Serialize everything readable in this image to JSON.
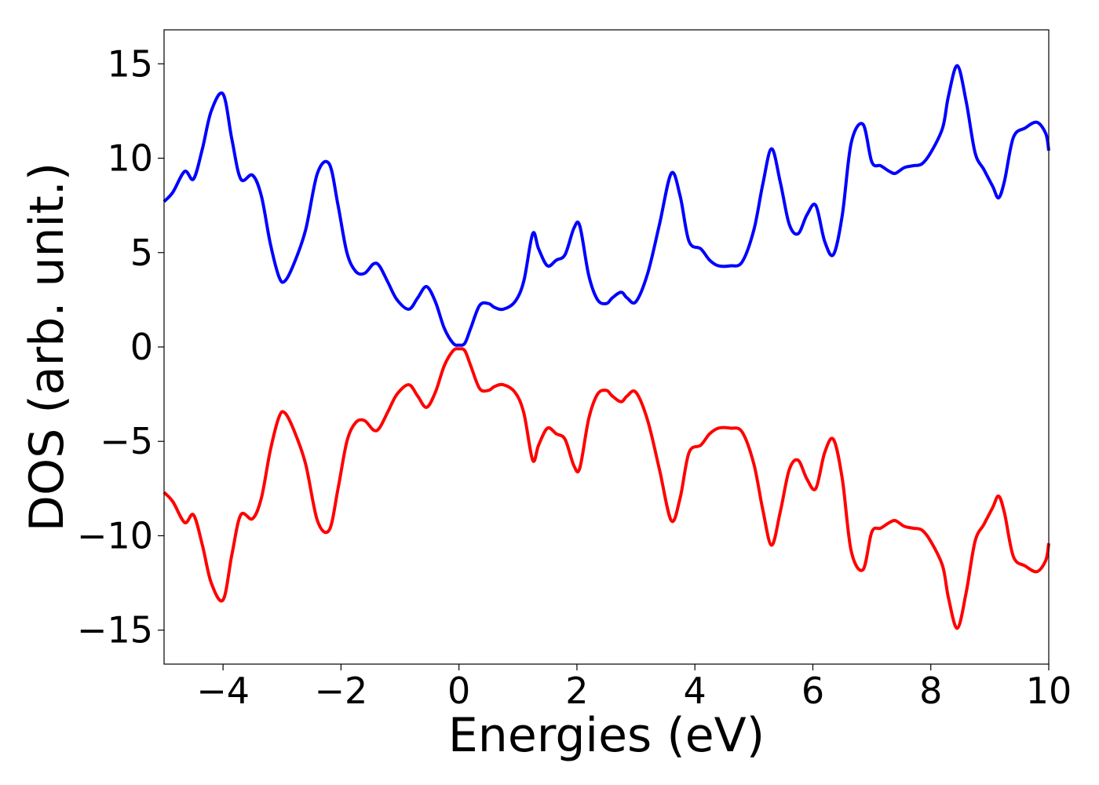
{
  "chart_data": {
    "type": "line",
    "title": "",
    "xlabel": "Energies (eV)",
    "ylabel": "DOS (arb. unit.)",
    "xlim": [
      -5,
      10
    ],
    "ylim": [
      -16.8,
      16.8
    ],
    "xticks": [
      -4,
      -2,
      0,
      2,
      4,
      6,
      8,
      10
    ],
    "xtick_labels": [
      "−4",
      "−2",
      "0",
      "2",
      "4",
      "6",
      "8",
      "10"
    ],
    "yticks": [
      15,
      10,
      5,
      0,
      -5,
      -10,
      -15
    ],
    "ytick_labels": [
      "15",
      "10",
      "5",
      "0",
      "−5",
      "−10",
      "−15"
    ],
    "grid": false,
    "legend": "none",
    "series": [
      {
        "color": "#0000ff",
        "x": [
          -5.0,
          -4.85,
          -4.65,
          -4.5,
          -4.35,
          -4.2,
          -4.0,
          -3.85,
          -3.7,
          -3.5,
          -3.35,
          -3.2,
          -3.05,
          -2.95,
          -2.8,
          -2.6,
          -2.4,
          -2.2,
          -2.05,
          -1.9,
          -1.75,
          -1.6,
          -1.45,
          -1.35,
          -1.2,
          -1.05,
          -0.85,
          -0.7,
          -0.55,
          -0.4,
          -0.25,
          -0.1,
          0.0,
          0.1,
          0.2,
          0.35,
          0.5,
          0.6,
          0.75,
          0.95,
          1.1,
          1.25,
          1.35,
          1.5,
          1.65,
          1.8,
          1.95,
          2.05,
          2.2,
          2.35,
          2.5,
          2.6,
          2.75,
          2.85,
          3.0,
          3.2,
          3.4,
          3.6,
          3.75,
          3.9,
          4.1,
          4.25,
          4.4,
          4.6,
          4.8,
          5.0,
          5.15,
          5.3,
          5.45,
          5.6,
          5.75,
          5.9,
          6.05,
          6.2,
          6.35,
          6.5,
          6.65,
          6.85,
          7.0,
          7.15,
          7.3,
          7.4,
          7.55,
          7.7,
          7.85,
          8.0,
          8.2,
          8.3,
          8.45,
          8.6,
          8.75,
          8.9,
          9.05,
          9.15,
          9.25,
          9.4,
          9.6,
          9.8,
          9.95,
          10.0
        ],
        "values": [
          7.7,
          8.2,
          9.3,
          8.9,
          10.5,
          12.5,
          13.4,
          11.0,
          8.9,
          9.1,
          8.0,
          5.5,
          3.7,
          3.5,
          4.4,
          6.2,
          9.2,
          9.7,
          7.5,
          5.0,
          4.0,
          3.9,
          4.4,
          4.3,
          3.4,
          2.5,
          2.0,
          2.6,
          3.2,
          2.4,
          1.0,
          0.2,
          0.1,
          0.2,
          1.0,
          2.2,
          2.3,
          2.1,
          2.0,
          2.4,
          3.5,
          6.0,
          5.2,
          4.3,
          4.6,
          4.9,
          6.3,
          6.4,
          3.8,
          2.5,
          2.3,
          2.6,
          2.9,
          2.6,
          2.4,
          3.9,
          6.5,
          9.2,
          8.0,
          5.6,
          5.2,
          4.6,
          4.3,
          4.3,
          4.5,
          6.2,
          8.6,
          10.5,
          8.7,
          6.5,
          6.0,
          7.0,
          7.5,
          5.6,
          4.9,
          7.0,
          10.8,
          11.8,
          9.8,
          9.6,
          9.3,
          9.2,
          9.5,
          9.6,
          9.7,
          10.3,
          11.6,
          13.3,
          14.9,
          13.0,
          10.3,
          9.4,
          8.5,
          7.9,
          8.8,
          11.1,
          11.6,
          11.9,
          11.3,
          10.4
        ]
      },
      {
        "color": "#ff0000",
        "x": [
          -5.0,
          -4.85,
          -4.65,
          -4.5,
          -4.35,
          -4.2,
          -4.0,
          -3.85,
          -3.7,
          -3.5,
          -3.35,
          -3.2,
          -3.05,
          -2.95,
          -2.8,
          -2.6,
          -2.4,
          -2.2,
          -2.05,
          -1.9,
          -1.75,
          -1.6,
          -1.45,
          -1.35,
          -1.2,
          -1.05,
          -0.85,
          -0.7,
          -0.55,
          -0.4,
          -0.25,
          -0.1,
          0.0,
          0.1,
          0.2,
          0.35,
          0.5,
          0.6,
          0.75,
          0.95,
          1.1,
          1.25,
          1.35,
          1.5,
          1.65,
          1.8,
          1.95,
          2.05,
          2.2,
          2.35,
          2.5,
          2.6,
          2.75,
          2.85,
          3.0,
          3.2,
          3.4,
          3.6,
          3.75,
          3.9,
          4.1,
          4.25,
          4.4,
          4.6,
          4.8,
          5.0,
          5.15,
          5.3,
          5.45,
          5.6,
          5.75,
          5.9,
          6.05,
          6.2,
          6.35,
          6.5,
          6.65,
          6.85,
          7.0,
          7.15,
          7.3,
          7.4,
          7.55,
          7.7,
          7.85,
          8.0,
          8.2,
          8.3,
          8.45,
          8.6,
          8.75,
          8.9,
          9.05,
          9.15,
          9.25,
          9.4,
          9.6,
          9.8,
          9.95,
          10.0
        ],
        "values": [
          -7.7,
          -8.2,
          -9.3,
          -8.9,
          -10.5,
          -12.5,
          -13.4,
          -11.0,
          -8.9,
          -9.1,
          -8.0,
          -5.5,
          -3.7,
          -3.5,
          -4.4,
          -6.2,
          -9.2,
          -9.7,
          -7.5,
          -5.0,
          -4.0,
          -3.9,
          -4.4,
          -4.3,
          -3.4,
          -2.5,
          -2.0,
          -2.6,
          -3.2,
          -2.4,
          -1.0,
          -0.2,
          -0.1,
          -0.2,
          -1.0,
          -2.2,
          -2.3,
          -2.1,
          -2.0,
          -2.4,
          -3.5,
          -6.0,
          -5.2,
          -4.3,
          -4.6,
          -4.9,
          -6.3,
          -6.4,
          -3.8,
          -2.5,
          -2.3,
          -2.6,
          -2.9,
          -2.6,
          -2.4,
          -3.9,
          -6.5,
          -9.2,
          -8.0,
          -5.6,
          -5.2,
          -4.6,
          -4.3,
          -4.3,
          -4.5,
          -6.2,
          -8.6,
          -10.5,
          -8.7,
          -6.5,
          -6.0,
          -7.0,
          -7.5,
          -5.6,
          -4.9,
          -7.0,
          -10.8,
          -11.8,
          -9.8,
          -9.6,
          -9.3,
          -9.2,
          -9.5,
          -9.6,
          -9.7,
          -10.3,
          -11.6,
          -13.3,
          -14.9,
          -13.0,
          -10.3,
          -9.4,
          -8.5,
          -7.9,
          -8.8,
          -11.1,
          -11.6,
          -11.9,
          -11.3,
          -10.4
        ]
      }
    ]
  }
}
